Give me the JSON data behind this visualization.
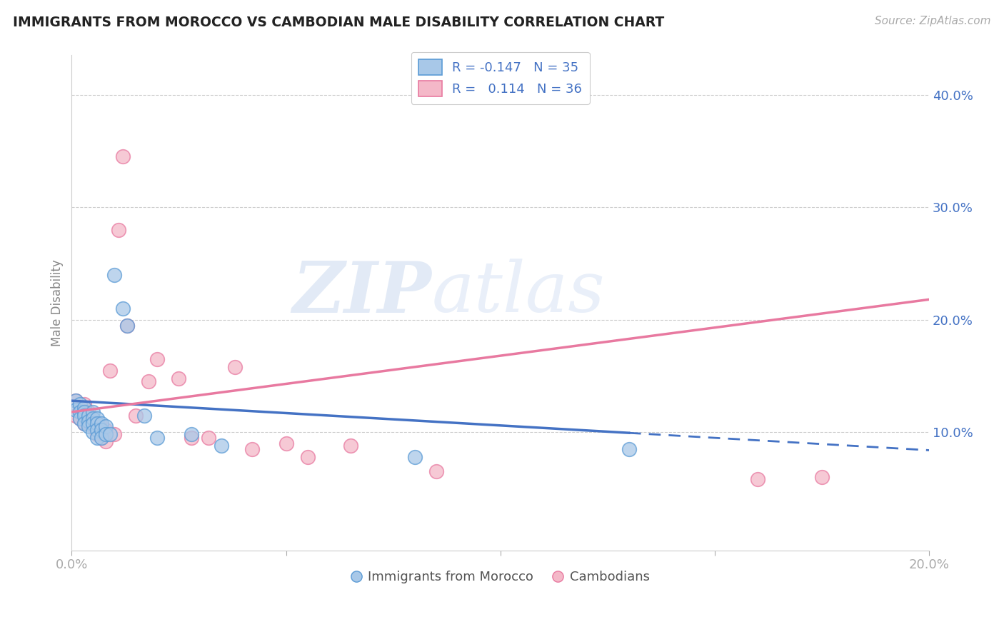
{
  "title": "IMMIGRANTS FROM MOROCCO VS CAMBODIAN MALE DISABILITY CORRELATION CHART",
  "source": "Source: ZipAtlas.com",
  "ylabel": "Male Disability",
  "xlim": [
    0.0,
    0.2
  ],
  "ylim": [
    -0.005,
    0.435
  ],
  "yticks": [
    0.1,
    0.2,
    0.3,
    0.4
  ],
  "ytick_labels": [
    "10.0%",
    "20.0%",
    "30.0%",
    "40.0%"
  ],
  "xticks": [
    0.0,
    0.05,
    0.1,
    0.15,
    0.2
  ],
  "xtick_labels": [
    "0.0%",
    "",
    "",
    "",
    "20.0%"
  ],
  "legend_text1": "R = -0.147   N = 35",
  "legend_text2": "R =   0.114   N = 36",
  "legend_label1": "Immigrants from Morocco",
  "legend_label2": "Cambodians",
  "blue_fill": "#a8c8e8",
  "blue_edge": "#5b9bd5",
  "pink_fill": "#f4b8c8",
  "pink_edge": "#e879a0",
  "blue_line_color": "#4472c4",
  "pink_line_color": "#e879a0",
  "morocco_x": [
    0.001,
    0.001,
    0.002,
    0.002,
    0.002,
    0.003,
    0.003,
    0.003,
    0.003,
    0.004,
    0.004,
    0.004,
    0.005,
    0.005,
    0.005,
    0.005,
    0.006,
    0.006,
    0.006,
    0.006,
    0.007,
    0.007,
    0.007,
    0.008,
    0.008,
    0.009,
    0.01,
    0.012,
    0.013,
    0.017,
    0.02,
    0.028,
    0.035,
    0.08,
    0.13
  ],
  "morocco_y": [
    0.128,
    0.12,
    0.125,
    0.118,
    0.112,
    0.122,
    0.118,
    0.115,
    0.108,
    0.115,
    0.11,
    0.105,
    0.118,
    0.112,
    0.108,
    0.1,
    0.112,
    0.108,
    0.102,
    0.095,
    0.108,
    0.102,
    0.095,
    0.105,
    0.098,
    0.098,
    0.24,
    0.21,
    0.195,
    0.115,
    0.095,
    0.098,
    0.088,
    0.078,
    0.085
  ],
  "cambodian_x": [
    0.001,
    0.001,
    0.002,
    0.002,
    0.003,
    0.003,
    0.003,
    0.004,
    0.004,
    0.005,
    0.005,
    0.006,
    0.006,
    0.007,
    0.007,
    0.008,
    0.008,
    0.009,
    0.01,
    0.011,
    0.012,
    0.013,
    0.015,
    0.018,
    0.02,
    0.025,
    0.028,
    0.032,
    0.038,
    0.042,
    0.05,
    0.055,
    0.065,
    0.085,
    0.16,
    0.175
  ],
  "cambodian_y": [
    0.128,
    0.115,
    0.122,
    0.112,
    0.125,
    0.118,
    0.108,
    0.118,
    0.108,
    0.112,
    0.105,
    0.108,
    0.098,
    0.105,
    0.095,
    0.102,
    0.092,
    0.155,
    0.098,
    0.28,
    0.345,
    0.195,
    0.115,
    0.145,
    0.165,
    0.148,
    0.095,
    0.095,
    0.158,
    0.085,
    0.09,
    0.078,
    0.088,
    0.065,
    0.058,
    0.06
  ],
  "watermark_zip": "ZIP",
  "watermark_atlas": "atlas",
  "background_color": "#ffffff",
  "grid_color": "#cccccc",
  "blue_line_intercept": 0.128,
  "blue_line_slope": -0.22,
  "pink_line_intercept": 0.118,
  "pink_line_slope": 0.5
}
